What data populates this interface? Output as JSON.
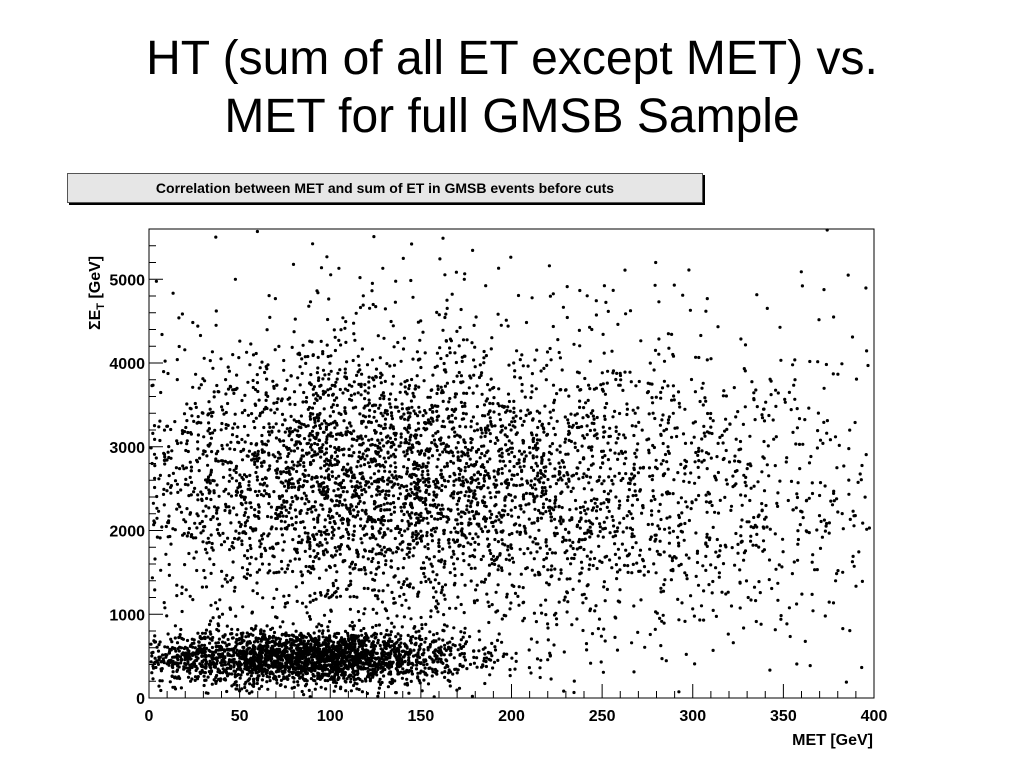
{
  "slide": {
    "title_line1": "HT (sum of all ET except MET) vs.",
    "title_line2": "MET for full GMSB Sample"
  },
  "chart_data": {
    "type": "scatter",
    "title": "Correlation between MET and sum of ET in GMSB events before cuts",
    "xlabel": "MET [GeV]",
    "ylabel_sigma": "Σ",
    "ylabel_main": "E",
    "ylabel_sub": "T",
    "ylabel_unit": "[GeV]",
    "xlim": [
      0,
      400
    ],
    "ylim": [
      0,
      5600
    ],
    "xticks": [
      0,
      50,
      100,
      150,
      200,
      250,
      300,
      350,
      400
    ],
    "yticks": [
      0,
      1000,
      2000,
      3000,
      4000,
      5000
    ],
    "grid": false,
    "marker_color": "#000000",
    "clusters": [
      {
        "description_x_center": 85,
        "description_y_center": 480,
        "x_spread": 45,
        "y_spread": 160,
        "count": 2600
      },
      {
        "description_x_center": 110,
        "description_y_center": 2600,
        "x_spread": 70,
        "y_spread": 800,
        "count": 2800
      },
      {
        "description_x_center": 250,
        "description_y_center": 2400,
        "x_spread": 90,
        "y_spread": 900,
        "count": 1400
      },
      {
        "description_x_center": 200,
        "description_y_center": 3000,
        "x_spread": 120,
        "y_spread": 1500,
        "count": 700
      }
    ]
  }
}
